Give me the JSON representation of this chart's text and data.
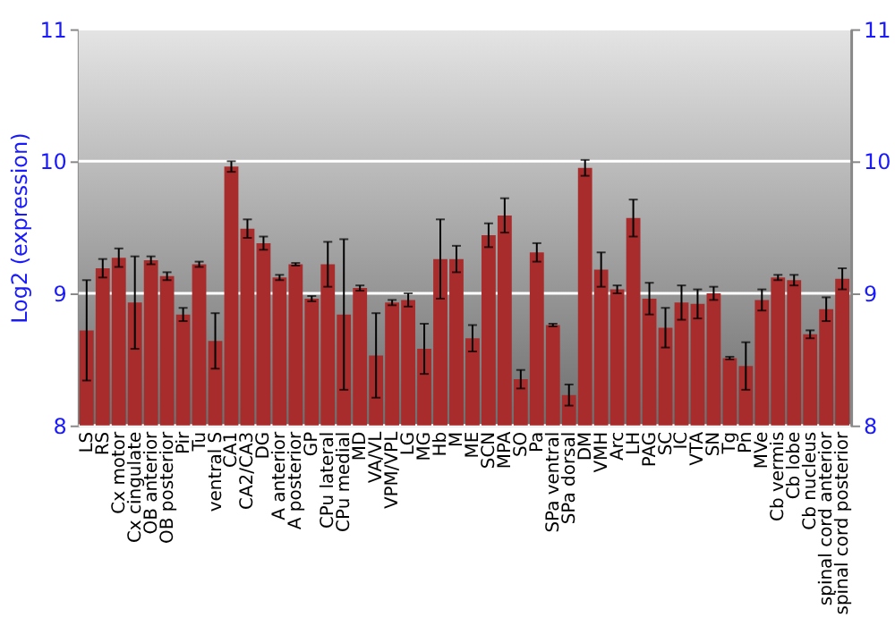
{
  "chart_data": {
    "type": "bar",
    "ylabel": "Log2 (expression)",
    "categories": [
      "LS",
      "RS",
      "Cx motor",
      "Cx cingulate",
      "OB anterior",
      "OB posterior",
      "Pir",
      "Tu",
      "ventral S",
      "CA1",
      "CA2/CA3",
      "DG",
      "A anterior",
      "A posterior",
      "GP",
      "CPu lateral",
      "CPu medial",
      "MD",
      "VA/VL",
      "VPM/VPL",
      "LG",
      "MG",
      "Hb",
      "M",
      "ME",
      "SCN",
      "MPA",
      "SO",
      "Pa",
      "SPa ventral",
      "SPa dorsal",
      "DM",
      "VMH",
      "Arc",
      "LH",
      "PAG",
      "SC",
      "IC",
      "VTA",
      "SN",
      "Tg",
      "Pn",
      "MVe",
      "Cb vermis",
      "Cb lobe",
      "Cb nucleus",
      "spinal cord anterior",
      "spinal cord posterior"
    ],
    "values": [
      8.72,
      9.19,
      9.27,
      8.93,
      9.25,
      9.13,
      8.84,
      9.22,
      8.64,
      9.96,
      9.49,
      9.38,
      9.12,
      9.22,
      8.96,
      9.22,
      8.84,
      9.04,
      8.53,
      8.93,
      8.95,
      8.58,
      9.26,
      9.26,
      8.66,
      9.44,
      9.59,
      8.35,
      9.31,
      8.76,
      8.23,
      9.95,
      9.18,
      9.03,
      9.57,
      8.96,
      8.74,
      8.93,
      8.92,
      9.0,
      8.51,
      8.45,
      8.95,
      9.12,
      9.1,
      8.69,
      8.88,
      9.11
    ],
    "errors": [
      0.38,
      0.07,
      0.07,
      0.35,
      0.03,
      0.03,
      0.05,
      0.02,
      0.21,
      0.04,
      0.07,
      0.05,
      0.02,
      0.01,
      0.02,
      0.17,
      0.57,
      0.02,
      0.32,
      0.02,
      0.05,
      0.19,
      0.3,
      0.1,
      0.1,
      0.09,
      0.13,
      0.07,
      0.07,
      0.01,
      0.08,
      0.06,
      0.13,
      0.03,
      0.14,
      0.12,
      0.15,
      0.13,
      0.11,
      0.05,
      0.01,
      0.18,
      0.08,
      0.02,
      0.04,
      0.03,
      0.09,
      0.08
    ],
    "color": "#a82c2c",
    "ylim": [
      8,
      11
    ],
    "yticks": [
      8,
      9,
      10,
      11
    ],
    "y2lim": [
      8,
      11
    ],
    "y2ticks": [
      8,
      9,
      10,
      11
    ],
    "grid": "y"
  }
}
